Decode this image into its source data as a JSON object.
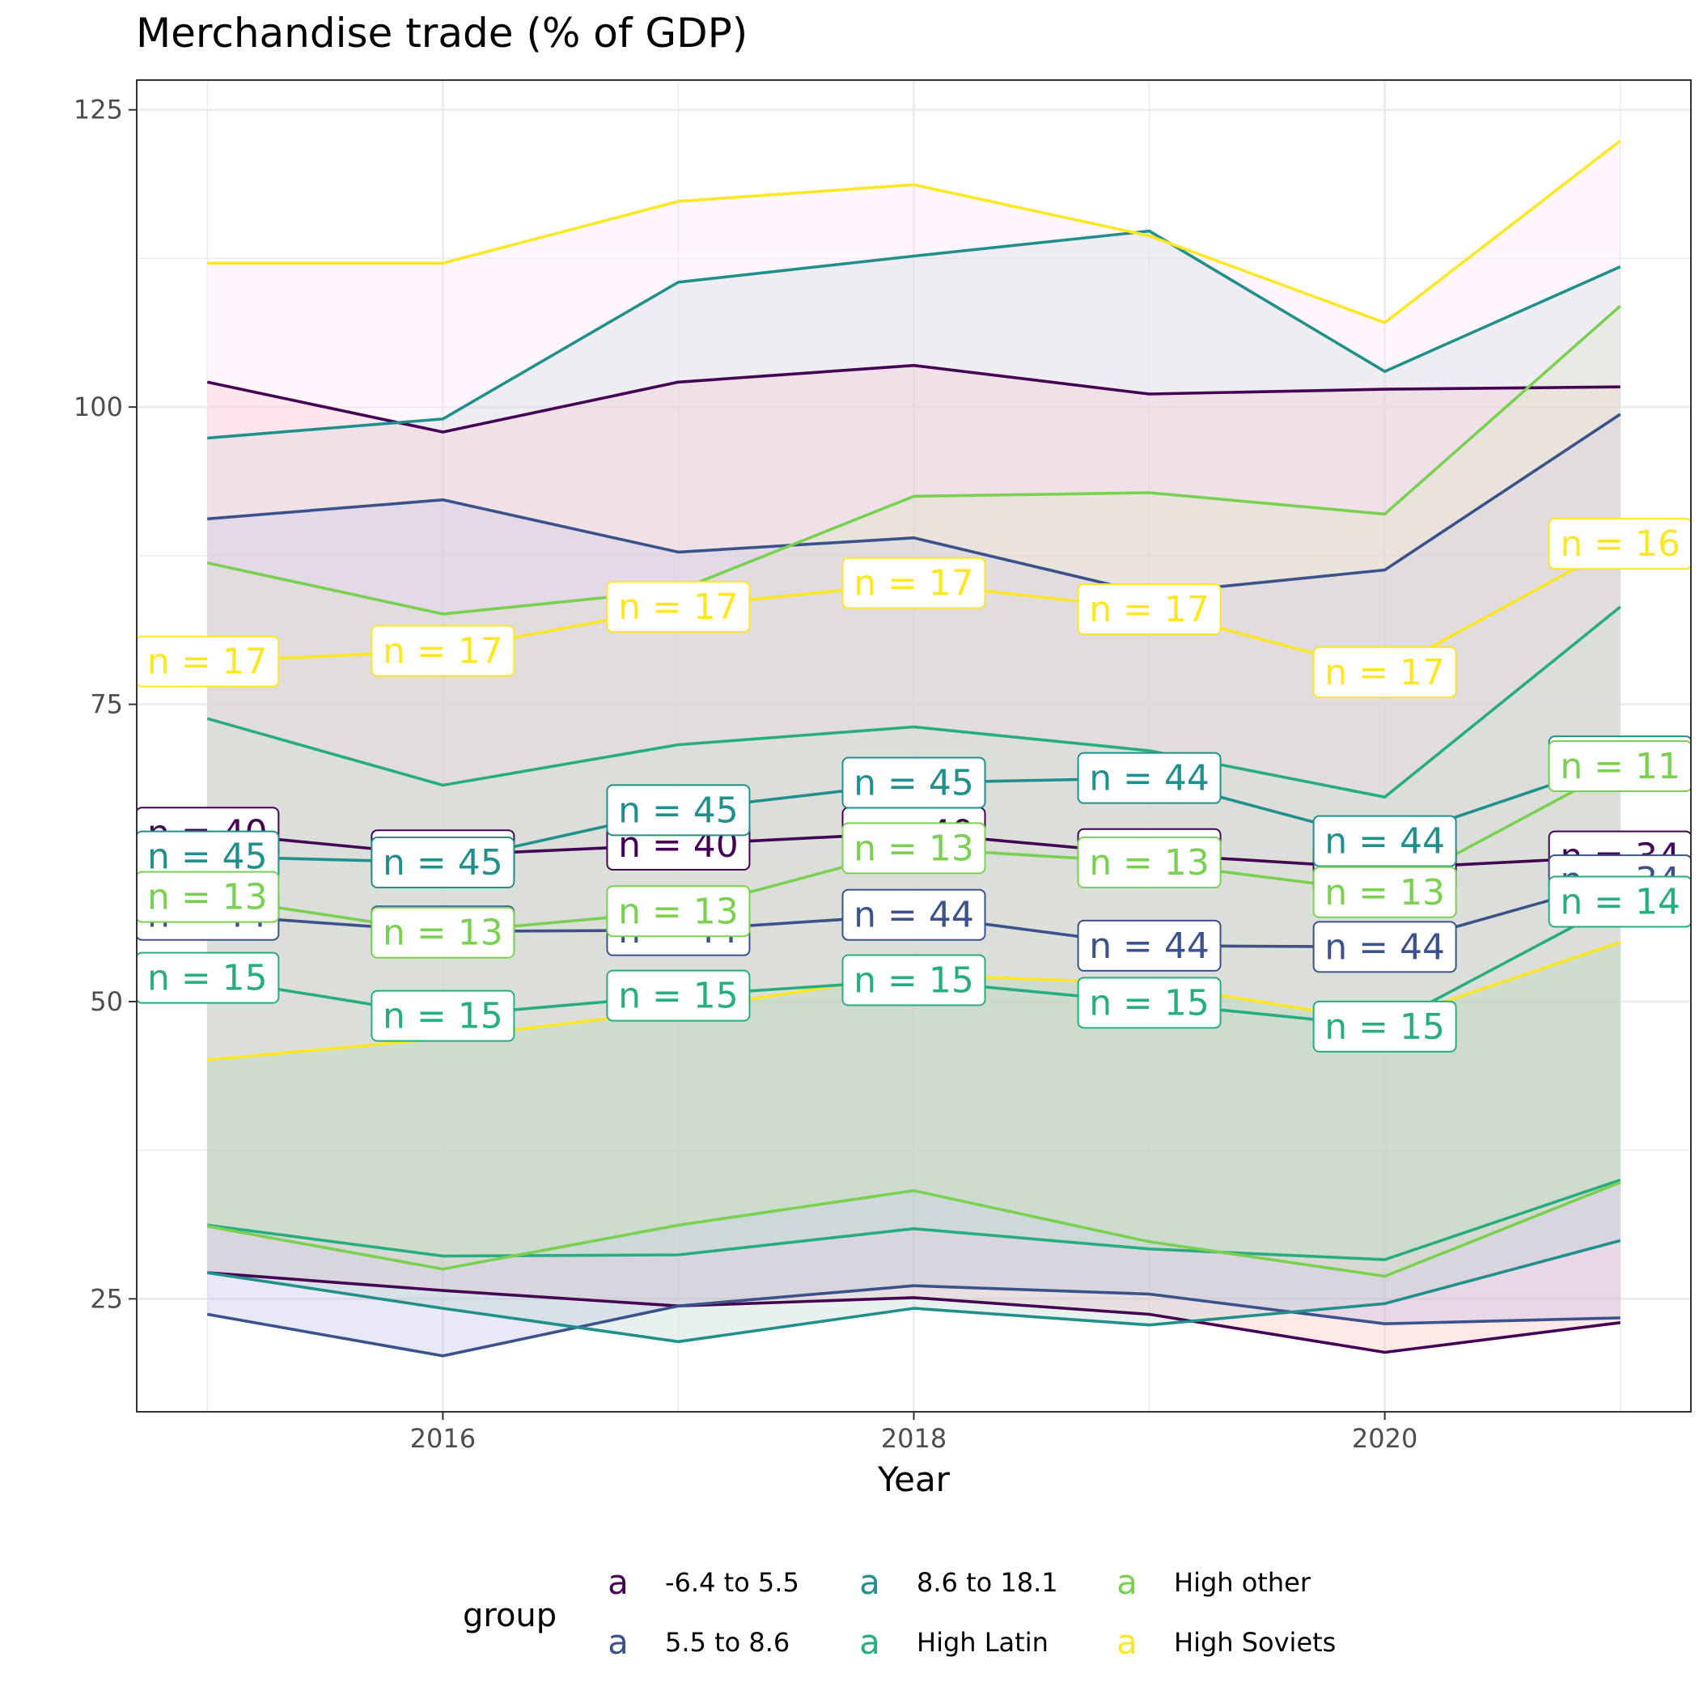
{
  "chart_data": {
    "type": "line",
    "title": "Merchandise trade (% of GDP)",
    "xlabel": "Year",
    "ylabel": "",
    "x": [
      2015,
      2016,
      2017,
      2018,
      2019,
      2020,
      2021
    ],
    "x_ticks": [
      2016,
      2018,
      2020
    ],
    "x_tick_labels": [
      "2016",
      "2018",
      "2020"
    ],
    "xlim": [
      2014.7,
      2021.3
    ],
    "y_ticks": [
      25,
      50,
      75,
      100,
      125
    ],
    "y_tick_labels": [
      "25",
      "50",
      "75",
      "100",
      "125"
    ],
    "ylim": [
      15.5,
      127.5
    ],
    "grid": true,
    "legend": {
      "title": "group",
      "position": "bottom",
      "key_glyph": "a"
    },
    "series": [
      {
        "name": "-6.4 to 5.5",
        "color": "#440154",
        "fill": "#FFB3B3",
        "mean": [
          64.2,
          62.3,
          63.2,
          64.2,
          62.4,
          61.2,
          62.2
        ],
        "upper": [
          102.1,
          97.9,
          102.1,
          103.5,
          101.1,
          101.5,
          101.7
        ],
        "lower": [
          27.2,
          25.7,
          24.4,
          25.1,
          23.7,
          20.5,
          23.0
        ],
        "n": [
          40,
          40,
          40,
          40,
          40,
          40,
          34
        ]
      },
      {
        "name": "5.5 to 8.6",
        "color": "#3B528B",
        "fill": "#B3B3E6",
        "mean": [
          57.3,
          55.9,
          56.0,
          57.3,
          54.7,
          54.6,
          60.2
        ],
        "upper": [
          90.6,
          92.2,
          87.8,
          89.0,
          84.3,
          86.3,
          99.4
        ],
        "lower": [
          23.7,
          20.2,
          24.4,
          26.1,
          25.4,
          22.9,
          23.4
        ],
        "n": [
          44,
          44,
          44,
          44,
          44,
          44,
          34
        ]
      },
      {
        "name": "8.6 to 18.1",
        "color": "#21908C",
        "fill": "#B3CCCC",
        "mean": [
          62.2,
          61.7,
          66.1,
          68.4,
          68.8,
          63.5,
          70.2
        ],
        "upper": [
          97.4,
          99.0,
          110.5,
          112.7,
          114.8,
          103.0,
          111.8
        ],
        "lower": [
          27.2,
          24.2,
          21.4,
          24.2,
          22.8,
          24.6,
          29.9
        ],
        "n": [
          45,
          45,
          45,
          45,
          44,
          44,
          14
        ]
      },
      {
        "name": "High Latin",
        "color": "#27AD81",
        "fill": "#B3E6CC",
        "mean": [
          52.0,
          48.8,
          50.5,
          51.8,
          49.9,
          47.9,
          58.4
        ],
        "upper": [
          73.8,
          68.2,
          71.6,
          73.1,
          71.1,
          67.2,
          83.2
        ],
        "lower": [
          31.2,
          28.6,
          28.7,
          30.9,
          29.2,
          28.3,
          35.0
        ],
        "n": [
          15,
          15,
          15,
          15,
          15,
          15,
          14
        ]
      },
      {
        "name": "High other",
        "color": "#7AD151",
        "fill": "#CCE6B3",
        "mean": [
          58.8,
          55.8,
          57.6,
          62.9,
          61.7,
          59.2,
          69.8
        ],
        "upper": [
          86.9,
          82.6,
          84.6,
          92.5,
          92.8,
          91.0,
          108.5
        ],
        "lower": [
          31.1,
          27.5,
          31.2,
          34.1,
          29.8,
          26.9,
          34.8
        ],
        "n": [
          13,
          13,
          13,
          13,
          13,
          13,
          11
        ]
      },
      {
        "name": "High Soviets",
        "color": "#FDE725",
        "fill": "#FFE6F9",
        "mean": [
          78.6,
          79.5,
          83.2,
          85.2,
          83.0,
          77.7,
          88.5
        ],
        "upper": [
          112.1,
          112.1,
          117.3,
          118.7,
          114.4,
          107.1,
          122.4
        ],
        "lower": [
          45.1,
          46.9,
          49.3,
          52.3,
          51.5,
          48.3,
          55.0
        ],
        "n": [
          17,
          17,
          17,
          17,
          17,
          17,
          16
        ]
      }
    ]
  }
}
